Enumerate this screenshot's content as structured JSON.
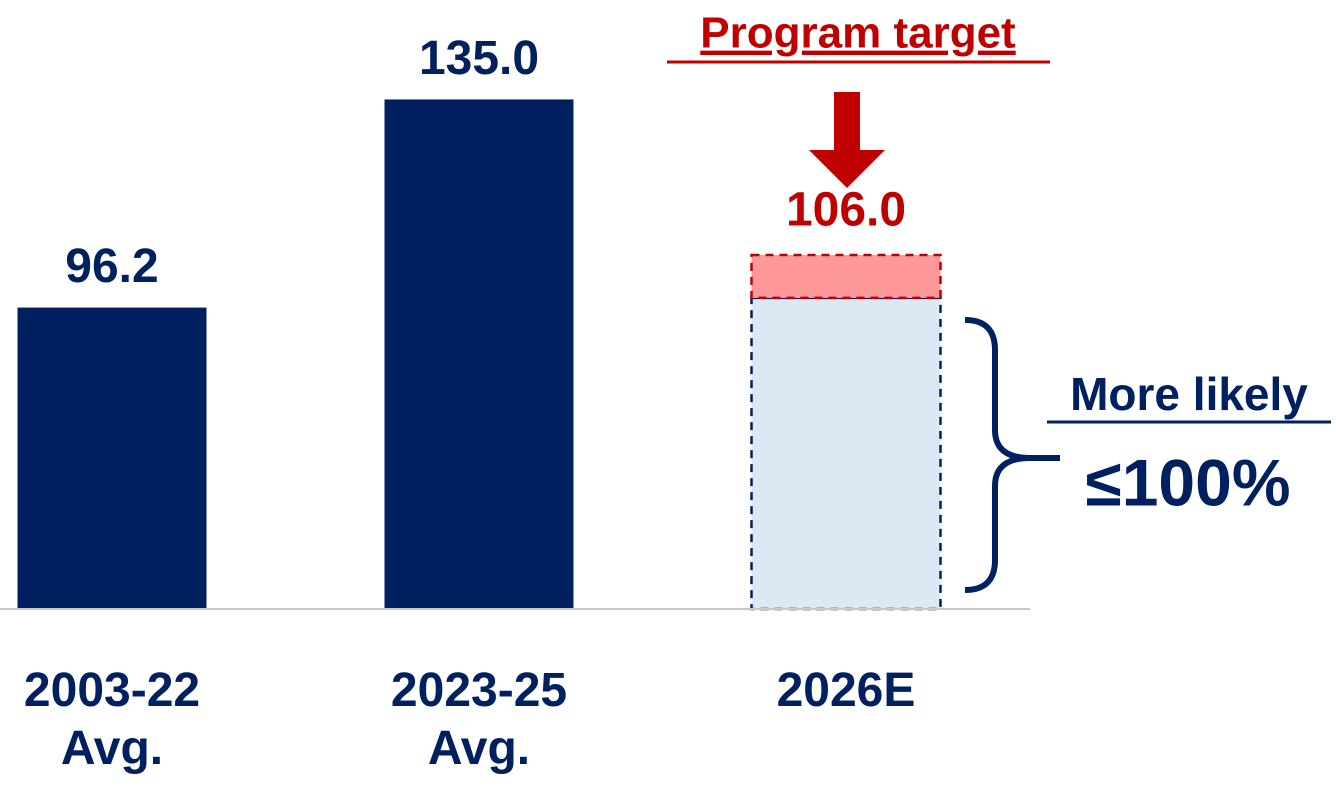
{
  "chart_data": {
    "type": "bar",
    "categories": [
      "2003-22 Avg.",
      "2023-25 Avg.",
      "2026E"
    ],
    "values": [
      96.2,
      135.0,
      106.0
    ],
    "value_labels": [
      "96.2",
      "135.0",
      "106.0"
    ],
    "likely_value": 98,
    "color": "#002060",
    "target_color": "#c00000",
    "likely_color": "#dde8f5",
    "target_fill": "#ff9999",
    "ylim": [
      40,
      150
    ],
    "annotations": {
      "target": "Program target",
      "likely": "More likely",
      "likely_value_text": "≤100%"
    }
  }
}
